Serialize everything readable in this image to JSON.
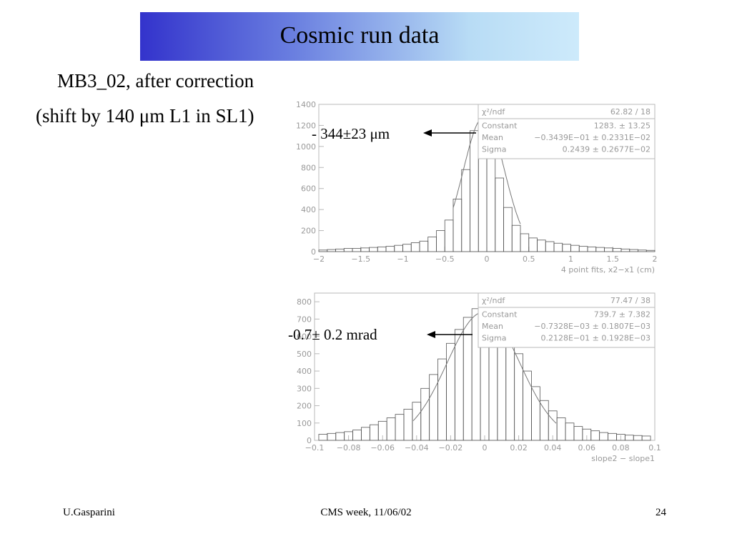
{
  "slide": {
    "title": "Cosmic run data",
    "subtitle_line1": "MB3_02, after correction",
    "subtitle_line2": "(shift by 140 μm L1 in SL1)",
    "annotation_top": "- 344±23 μm",
    "annotation_bottom": "-0.7± 0.2 mrad",
    "footer_left": "U.Gasparini",
    "footer_center": "CMS week, 11/06/02",
    "footer_right": "24",
    "colors": {
      "banner_start": "#3333cc",
      "banner_end": "#cdeafb",
      "plot_frame": "#b8b8b8",
      "plot_text": "#999999"
    }
  },
  "chart_data": [
    {
      "type": "histogram",
      "xlabel": "4 point fits, x2−x1 (cm)",
      "xlim": [
        -2,
        2
      ],
      "ylim": [
        0,
        1400
      ],
      "xticks": [
        "−2",
        "−1.5",
        "−1",
        "−0.5",
        "0",
        "0.5",
        "1",
        "1.5",
        "2"
      ],
      "yticks": [
        "0",
        "200",
        "400",
        "600",
        "800",
        "1000",
        "1200",
        "1400"
      ],
      "stats": [
        {
          "label": "χ²/ndf",
          "value": "62.82   /   18"
        },
        {
          "label": "Constant",
          "value": "1283. ±        13.25"
        },
        {
          "label": "Mean",
          "value": "−0.3439E−01 ±  0.2331E−02"
        },
        {
          "label": "Sigma",
          "value": "0.2439 ±  0.2677E−02"
        }
      ],
      "fit": {
        "constant": 1283,
        "mean": -0.03439,
        "sigma": 0.2439,
        "range": [
          -0.4,
          0.4
        ]
      },
      "bins": {
        "centers": [
          -1.95,
          -1.85,
          -1.75,
          -1.65,
          -1.55,
          -1.45,
          -1.35,
          -1.25,
          -1.15,
          -1.05,
          -0.95,
          -0.85,
          -0.75,
          -0.65,
          -0.55,
          -0.45,
          -0.35,
          -0.25,
          -0.15,
          -0.05,
          0.05,
          0.15,
          0.25,
          0.35,
          0.45,
          0.55,
          0.65,
          0.75,
          0.85,
          0.95,
          1.05,
          1.15,
          1.25,
          1.35,
          1.45,
          1.55,
          1.65,
          1.75,
          1.85,
          1.95
        ],
        "counts": [
          15,
          20,
          25,
          30,
          30,
          35,
          40,
          45,
          50,
          60,
          70,
          85,
          100,
          140,
          200,
          300,
          500,
          780,
          1150,
          1330,
          1050,
          700,
          420,
          250,
          170,
          130,
          110,
          95,
          80,
          70,
          60,
          50,
          45,
          40,
          35,
          30,
          25,
          20,
          15,
          12
        ]
      }
    },
    {
      "type": "histogram",
      "xlabel": "slope2 − slope1",
      "xlim": [
        -0.1,
        0.1
      ],
      "ylim": [
        0,
        850
      ],
      "xticks": [
        "−0.1",
        "−0.08",
        "−0.06",
        "−0.04",
        "−0.02",
        "0",
        "0.02",
        "0.04",
        "0.06",
        "0.08",
        "0.1"
      ],
      "yticks": [
        "0",
        "100",
        "200",
        "300",
        "400",
        "500",
        "600",
        "700",
        "800"
      ],
      "stats": [
        {
          "label": "χ²/ndf",
          "value": "77.47   /   38"
        },
        {
          "label": "Constant",
          "value": "739.7 ±       7.382"
        },
        {
          "label": "Mean",
          "value": "−0.7328E−03 ±  0.1807E−03"
        },
        {
          "label": "Sigma",
          "value": "0.2128E−01 ±  0.1928E−03"
        }
      ],
      "fit": {
        "constant": 739.7,
        "mean": -0.0007328,
        "sigma": 0.02128,
        "range": [
          -0.042,
          0.042
        ]
      },
      "bins": {
        "centers": [
          -0.095,
          -0.09,
          -0.085,
          -0.08,
          -0.075,
          -0.07,
          -0.065,
          -0.06,
          -0.055,
          -0.05,
          -0.045,
          -0.04,
          -0.035,
          -0.03,
          -0.025,
          -0.02,
          -0.015,
          -0.01,
          -0.005,
          0.0,
          0.005,
          0.01,
          0.015,
          0.02,
          0.025,
          0.03,
          0.035,
          0.04,
          0.045,
          0.05,
          0.055,
          0.06,
          0.065,
          0.07,
          0.075,
          0.08,
          0.085,
          0.09,
          0.095
        ],
        "counts": [
          35,
          40,
          45,
          50,
          60,
          75,
          90,
          110,
          130,
          150,
          180,
          220,
          300,
          380,
          470,
          560,
          640,
          710,
          760,
          780,
          750,
          690,
          600,
          500,
          400,
          310,
          230,
          170,
          130,
          100,
          80,
          65,
          55,
          45,
          40,
          35,
          30,
          28,
          25
        ]
      }
    }
  ]
}
